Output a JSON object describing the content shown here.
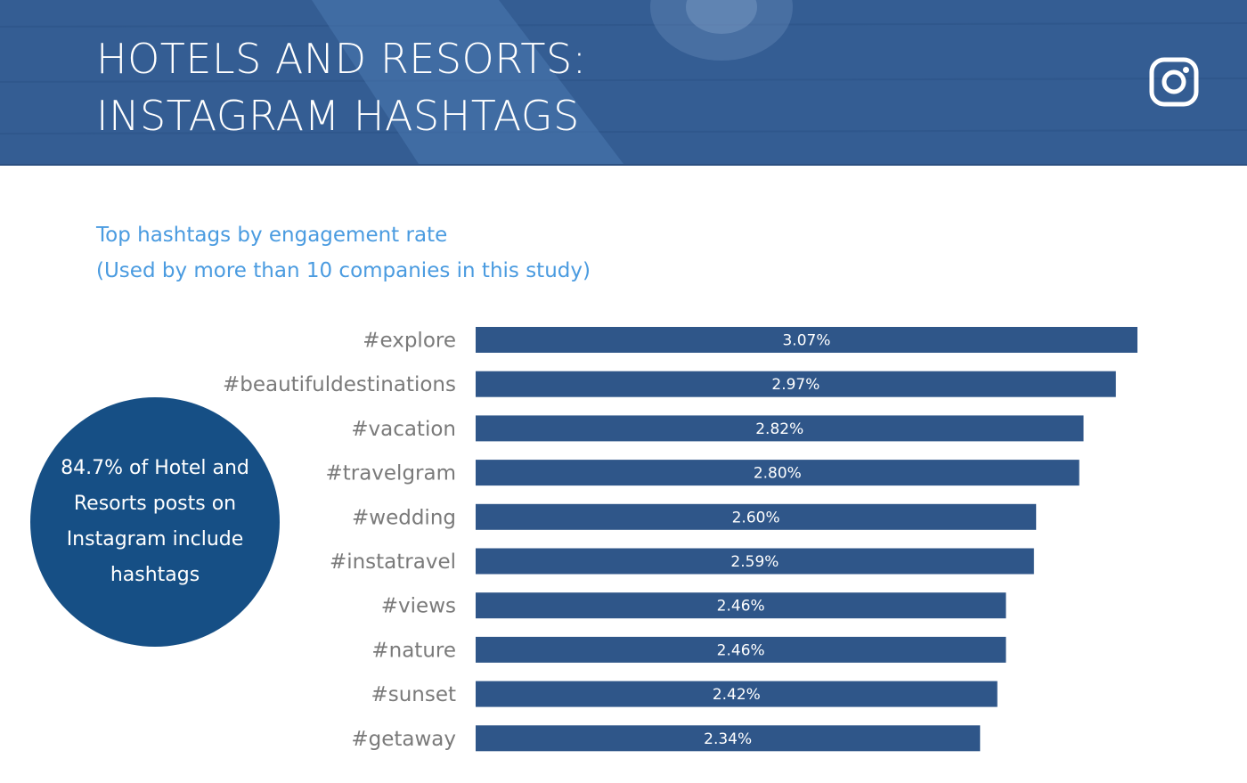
{
  "header": {
    "title_line1": "HOTELS AND RESORTS:",
    "title_line2": "INSTAGRAM HASHTAGS",
    "icon": "instagram-icon"
  },
  "subtitle": {
    "line1": "Top hashtags by engagement rate",
    "line2": "(Used by more than 10 companies in this study)"
  },
  "callout": {
    "text": "84.7% of Hotel and Resorts posts on Instagram include hashtags"
  },
  "colors": {
    "header_bg": "#345d93",
    "bar": "#2f5689",
    "subtitle": "#4a9be0",
    "callout_bg": "#164f85",
    "label_text": "#7a7a7a"
  },
  "chart_data": {
    "type": "bar",
    "orientation": "horizontal",
    "categories": [
      "#explore",
      "#beautifuldestinations",
      "#vacation",
      "#travelgram",
      "#wedding",
      "#instatravel",
      "#views",
      "#nature",
      "#sunset",
      "#getaway"
    ],
    "values": [
      3.07,
      2.97,
      2.82,
      2.8,
      2.6,
      2.59,
      2.46,
      2.46,
      2.42,
      2.34
    ],
    "value_labels": [
      "3.07%",
      "2.97%",
      "2.82%",
      "2.80%",
      "2.60%",
      "2.59%",
      "2.46%",
      "2.46%",
      "2.42%",
      "2.34%"
    ],
    "unit": "%",
    "xlim": [
      0,
      3.07
    ],
    "grid": false,
    "legend": "none"
  }
}
